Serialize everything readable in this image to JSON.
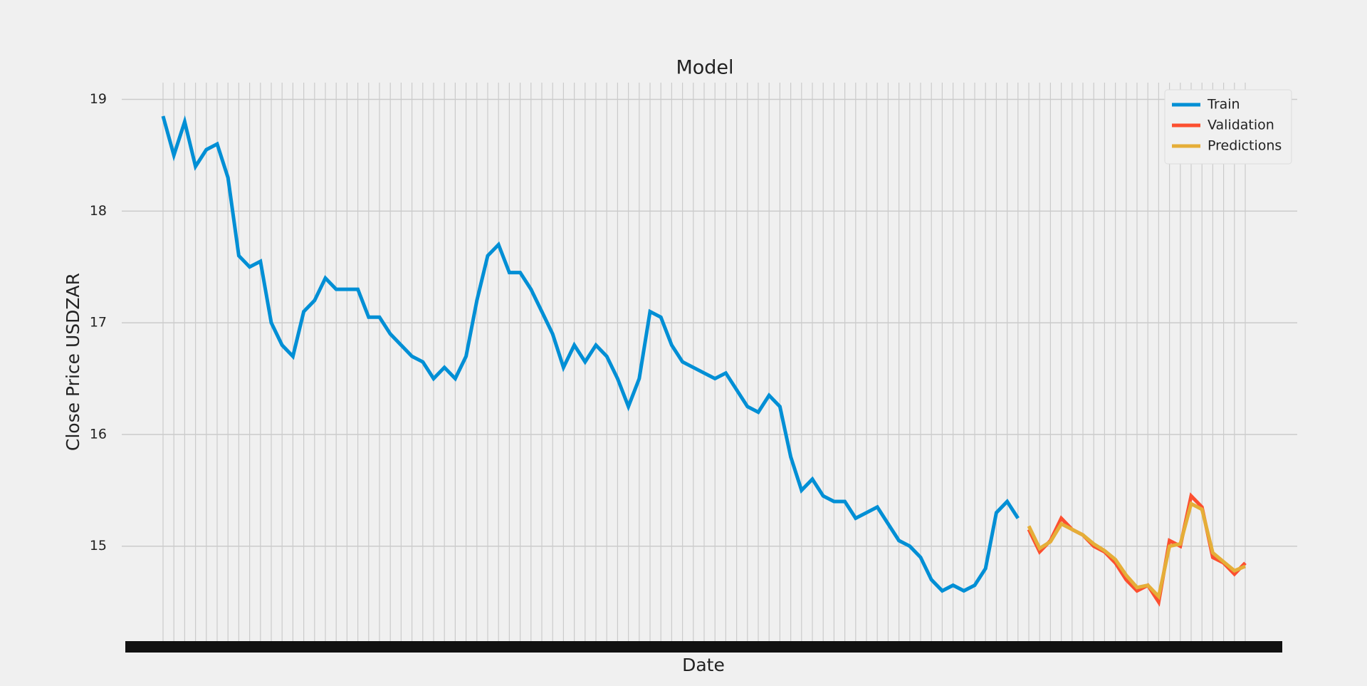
{
  "chart_data": {
    "type": "line",
    "title": "Model",
    "x_label": "Date",
    "y_label": "Close Price USDZAR",
    "categories": [
      null,
      null,
      null,
      null,
      null,
      null,
      null,
      null,
      null,
      null,
      null,
      null,
      null,
      null,
      null,
      null,
      null,
      null,
      null,
      null,
      null,
      null,
      null,
      null,
      null,
      null,
      null,
      null,
      null,
      null,
      null,
      null,
      null,
      null,
      null,
      null,
      null,
      null,
      null,
      null,
      null,
      null,
      null,
      null,
      null,
      null,
      null,
      null,
      null,
      null,
      null,
      null,
      null,
      null,
      null,
      null,
      null,
      null,
      null,
      null,
      null,
      null,
      null,
      null,
      null,
      null,
      null,
      null,
      null,
      null,
      null,
      null,
      null,
      null,
      null,
      null,
      null,
      null,
      null,
      null,
      null,
      null,
      null,
      null,
      null,
      null,
      null,
      null,
      null,
      null,
      null,
      null,
      null,
      null,
      null,
      null,
      null,
      null,
      null,
      null,
      null
    ],
    "series": [
      {
        "name": "Train",
        "color": "#008fd5",
        "values": [
          18.85,
          18.5,
          18.8,
          18.4,
          18.55,
          18.6,
          18.3,
          17.6,
          17.5,
          17.55,
          17.0,
          16.8,
          16.7,
          17.1,
          17.2,
          17.4,
          17.3,
          17.3,
          17.3,
          17.05,
          17.05,
          16.9,
          16.8,
          16.7,
          16.65,
          16.5,
          16.6,
          16.5,
          16.7,
          17.2,
          17.6,
          17.7,
          17.45,
          17.45,
          17.3,
          17.1,
          16.9,
          16.6,
          16.8,
          16.65,
          16.8,
          16.7,
          16.5,
          16.25,
          16.5,
          17.1,
          17.05,
          16.8,
          16.65,
          16.6,
          16.55,
          16.5,
          16.55,
          16.4,
          16.25,
          16.2,
          16.35,
          16.25,
          15.8,
          15.5,
          15.6,
          15.45,
          15.4,
          15.4,
          15.25,
          15.3,
          15.35,
          15.2,
          15.05,
          15.0,
          14.9,
          14.7,
          14.6,
          14.65,
          14.6,
          14.65,
          14.8,
          15.3,
          15.4,
          15.25,
          null,
          null,
          null,
          null,
          null,
          null,
          null,
          null,
          null,
          null,
          null,
          null,
          null,
          null,
          null,
          null,
          null,
          null,
          null,
          null,
          null
        ]
      },
      {
        "name": "Validation",
        "color": "#fc4f30",
        "values": [
          null,
          null,
          null,
          null,
          null,
          null,
          null,
          null,
          null,
          null,
          null,
          null,
          null,
          null,
          null,
          null,
          null,
          null,
          null,
          null,
          null,
          null,
          null,
          null,
          null,
          null,
          null,
          null,
          null,
          null,
          null,
          null,
          null,
          null,
          null,
          null,
          null,
          null,
          null,
          null,
          null,
          null,
          null,
          null,
          null,
          null,
          null,
          null,
          null,
          null,
          null,
          null,
          null,
          null,
          null,
          null,
          null,
          null,
          null,
          null,
          null,
          null,
          null,
          null,
          null,
          null,
          null,
          null,
          null,
          null,
          null,
          null,
          null,
          null,
          null,
          null,
          null,
          null,
          null,
          null,
          15.15,
          14.95,
          15.05,
          15.25,
          15.15,
          15.1,
          15.0,
          14.95,
          14.85,
          14.7,
          14.6,
          14.65,
          14.5,
          15.05,
          15.0,
          15.45,
          15.35,
          14.9,
          14.85,
          14.75,
          14.85
        ]
      },
      {
        "name": "Predictions",
        "color": "#e5ae38",
        "values": [
          null,
          null,
          null,
          null,
          null,
          null,
          null,
          null,
          null,
          null,
          null,
          null,
          null,
          null,
          null,
          null,
          null,
          null,
          null,
          null,
          null,
          null,
          null,
          null,
          null,
          null,
          null,
          null,
          null,
          null,
          null,
          null,
          null,
          null,
          null,
          null,
          null,
          null,
          null,
          null,
          null,
          null,
          null,
          null,
          null,
          null,
          null,
          null,
          null,
          null,
          null,
          null,
          null,
          null,
          null,
          null,
          null,
          null,
          null,
          null,
          null,
          null,
          null,
          null,
          null,
          null,
          null,
          null,
          null,
          null,
          null,
          null,
          null,
          null,
          null,
          null,
          null,
          null,
          null,
          null,
          15.18,
          14.98,
          15.04,
          15.2,
          15.15,
          15.1,
          15.02,
          14.96,
          14.88,
          14.74,
          14.63,
          14.65,
          14.55,
          15.0,
          15.02,
          15.38,
          15.33,
          14.94,
          14.86,
          14.78,
          14.82
        ]
      }
    ],
    "ylim": [
      14.15,
      19.15
    ],
    "yticks": [
      15,
      16,
      17,
      18,
      19
    ],
    "grid": true,
    "legend": "upper right"
  }
}
